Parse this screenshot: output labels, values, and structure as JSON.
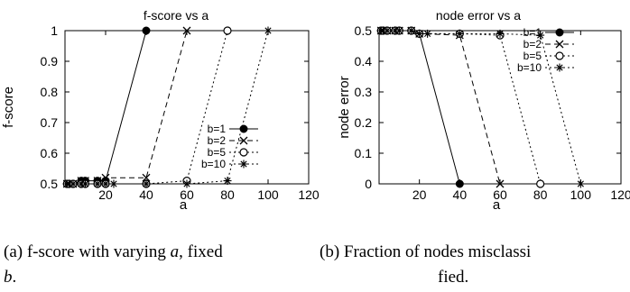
{
  "chart_data": [
    {
      "type": "line",
      "title": "f-score vs a",
      "xlabel": "a",
      "ylabel": "f-score",
      "xlim": [
        0,
        120
      ],
      "ylim": [
        0.5,
        1
      ],
      "xticks": [
        "20",
        "40",
        "60",
        "80",
        "100",
        "120"
      ],
      "yticks": [
        "0.5",
        "0.6",
        "0.7",
        "0.8",
        "0.9",
        "1"
      ],
      "grid": false,
      "legend_position": "bottom-right",
      "series": [
        {
          "name": "b=1",
          "style": "solid",
          "marker": "filled-circle",
          "x": [
            1,
            2,
            4,
            8,
            10,
            16,
            20,
            40
          ],
          "y": [
            0.5,
            0.5,
            0.5,
            0.51,
            0.51,
            0.51,
            0.51,
            1.0
          ]
        },
        {
          "name": "b=2",
          "style": "dashed",
          "marker": "x",
          "x": [
            1,
            2,
            4,
            8,
            10,
            16,
            20,
            40,
            60
          ],
          "y": [
            0.5,
            0.5,
            0.5,
            0.51,
            0.51,
            0.51,
            0.52,
            0.52,
            1.0
          ]
        },
        {
          "name": "b=5",
          "style": "dotted",
          "marker": "open-circle",
          "x": [
            1,
            2,
            4,
            8,
            10,
            16,
            20,
            40,
            60,
            80
          ],
          "y": [
            0.5,
            0.5,
            0.5,
            0.5,
            0.5,
            0.5,
            0.5,
            0.5,
            0.51,
            1.0
          ]
        },
        {
          "name": "b=10",
          "style": "dotted",
          "marker": "star",
          "x": [
            1,
            2,
            4,
            8,
            10,
            16,
            20,
            24,
            40,
            60,
            80,
            100
          ],
          "y": [
            0.5,
            0.5,
            0.5,
            0.5,
            0.5,
            0.5,
            0.5,
            0.5,
            0.5,
            0.5,
            0.51,
            1.0
          ]
        }
      ]
    },
    {
      "type": "line",
      "title": "node error vs a",
      "xlabel": "a",
      "ylabel": "node error",
      "xlim": [
        0,
        120
      ],
      "ylim": [
        0,
        0.5
      ],
      "xticks": [
        "20",
        "40",
        "60",
        "80",
        "100",
        "120"
      ],
      "yticks": [
        "0",
        "0.1",
        "0.2",
        "0.3",
        "0.4",
        "0.5"
      ],
      "grid": false,
      "legend_position": "top-right",
      "series": [
        {
          "name": "b=1",
          "style": "solid",
          "marker": "filled-circle",
          "x": [
            1,
            2,
            4,
            8,
            10,
            16,
            20,
            40
          ],
          "y": [
            0.5,
            0.5,
            0.5,
            0.5,
            0.5,
            0.5,
            0.49,
            0.0
          ]
        },
        {
          "name": "b=2",
          "style": "dashed",
          "marker": "x",
          "x": [
            1,
            2,
            4,
            8,
            10,
            16,
            20,
            40,
            60
          ],
          "y": [
            0.5,
            0.5,
            0.5,
            0.5,
            0.5,
            0.5,
            0.49,
            0.485,
            0.0
          ]
        },
        {
          "name": "b=5",
          "style": "dotted",
          "marker": "open-circle",
          "x": [
            1,
            2,
            4,
            8,
            10,
            16,
            20,
            40,
            60,
            80
          ],
          "y": [
            0.5,
            0.5,
            0.5,
            0.5,
            0.5,
            0.5,
            0.49,
            0.49,
            0.485,
            0.0
          ]
        },
        {
          "name": "b=10",
          "style": "dotted",
          "marker": "star",
          "x": [
            1,
            2,
            4,
            8,
            10,
            16,
            20,
            24,
            40,
            60,
            80,
            100
          ],
          "y": [
            0.5,
            0.5,
            0.5,
            0.5,
            0.5,
            0.5,
            0.49,
            0.49,
            0.49,
            0.49,
            0.485,
            0.0
          ]
        }
      ]
    }
  ],
  "captions": {
    "a": {
      "label": "(a)",
      "line1": "f-score with varying",
      "var1": "a",
      "mid": ", fixed",
      "var2": "b",
      "end": "."
    },
    "b": {
      "label": "(b)",
      "line1": "Fraction of nodes misclassi",
      "line2": "fied."
    }
  }
}
